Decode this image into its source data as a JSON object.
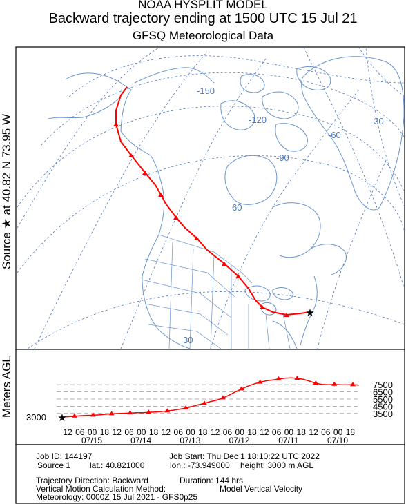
{
  "header": {
    "line1": "NOAA HYSPLIT MODEL",
    "line2": "Backward trajectory ending at 1500 UTC 15 Jul 21",
    "line3": "GFSQ Meteorological Data"
  },
  "side": {
    "source_label": "Source ★ at  40.82 N  73.95 W",
    "agl_label": "Meters AGL"
  },
  "map": {
    "lat_labels": [
      "-150",
      "-120",
      "-90",
      "-60",
      "-30",
      "60",
      "30"
    ],
    "colors": {
      "land": "#6a95cd",
      "grid": "#4e79be",
      "track": "#ff0000"
    }
  },
  "profile": {
    "ticks": [
      "7500",
      "6500",
      "5500",
      "4500",
      "3500"
    ],
    "start_height": "3000",
    "hour_labels": [
      "12",
      "06",
      "00",
      "18",
      "12",
      "06",
      "00",
      "18",
      "12",
      "06",
      "00",
      "18",
      "12",
      "06",
      "00",
      "18",
      "12",
      "06",
      "00",
      "18",
      "12",
      "06",
      "00",
      "18"
    ],
    "date_labels": [
      "07/15",
      "07/14",
      "07/13",
      "07/12",
      "07/11",
      "07/10"
    ],
    "heights_m": [
      3000,
      3050,
      3120,
      3180,
      3230,
      3250,
      3300,
      3380,
      3440,
      3490,
      3520,
      3560,
      3600,
      3600,
      3650,
      3700,
      3760,
      3850,
      3950,
      4100,
      4250,
      4450,
      4700,
      4900,
      5150,
      5350,
      5650,
      6050,
      6500,
      6900,
      7300,
      7600,
      7850,
      8050,
      8150,
      8300,
      8400,
      8450,
      8380,
      8250,
      8000,
      7700,
      7550,
      7500,
      7550,
      7500,
      7480,
      7500,
      7450
    ]
  },
  "info": {
    "job_id": "Job ID: 144197",
    "job_start": "Job Start: Thu Dec  1 18:10:22 UTC 2022",
    "source": "Source 1",
    "lat": "lat.: 40.821000",
    "lon": "lon.: -73.949000",
    "height": "height: 3000 m AGL",
    "direction": "Trajectory Direction: Backward",
    "duration": "Duration: 144 hrs",
    "vmethod": "Vertical Motion Calculation Method:",
    "vmethod_val": "Model Vertical Velocity",
    "meteorology": "Meteorology: 0000Z 15 Jul 2021 - GFS0p25"
  }
}
